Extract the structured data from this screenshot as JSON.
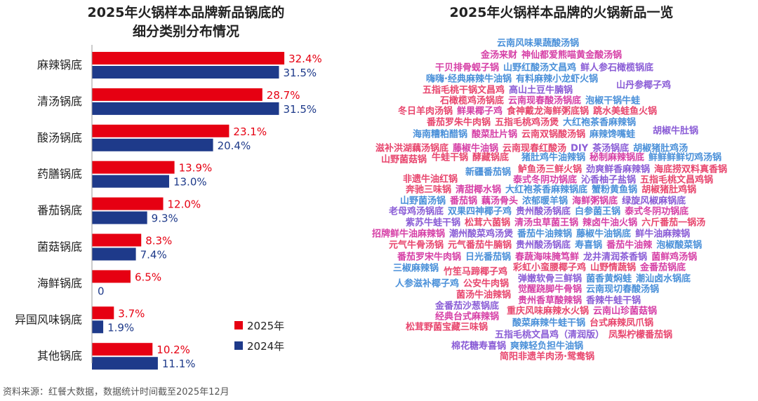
{
  "left_title": [
    "2025年火锅样本品牌新品锅底的",
    "细分类别分布情况"
  ],
  "right_title": "2025年火锅样本品牌的火锅新品一览",
  "source": "资料来源：红餐大数据，数据统计时间截至2025年12月",
  "colors": {
    "red": "#e60012",
    "navy": "#1e3a8a",
    "blue": "#4a90d9",
    "magenta": "#d63fa6",
    "purple": "#8a5cd6",
    "pink": "#e8466e"
  },
  "chart_data": {
    "type": "bar",
    "orientation": "horizontal",
    "categories": [
      "麻辣锅底",
      "清汤锅底",
      "酸汤锅底",
      "药膳锅底",
      "番茄锅底",
      "菌菇锅底",
      "海鲜锅底",
      "异国风味锅底",
      "其他锅底"
    ],
    "series": [
      {
        "name": "2025年",
        "color": "#e60012",
        "values": [
          32.4,
          28.7,
          23.1,
          13.9,
          12.0,
          8.3,
          6.5,
          3.7,
          10.2
        ],
        "labels": [
          "32.4%",
          "28.7%",
          "23.1%",
          "13.9%",
          "12.0%",
          "8.3%",
          "6.5%",
          "3.7%",
          "10.2%"
        ]
      },
      {
        "name": "2024年",
        "color": "#1e3a8a",
        "values": [
          31.5,
          31.5,
          20.4,
          13.0,
          9.3,
          7.4,
          0,
          1.9,
          11.1
        ],
        "labels": [
          "31.5%",
          "31.5%",
          "20.4%",
          "13.0%",
          "9.3%",
          "7.4%",
          "0",
          "1.9%",
          "11.1%"
        ]
      }
    ],
    "legend": "bottom-right",
    "grid": false
  },
  "wordcloud": [
    {
      "t": "云南风味果蔬酸汤锅",
      "c": "blue"
    },
    {
      "t": "金汤来财",
      "c": "magenta"
    },
    {
      "t": "神仙都爱熊喵黄金酸汤锅",
      "c": "magenta"
    },
    {
      "t": "干贝排骨蚬子锅",
      "c": "magenta"
    },
    {
      "t": "山野红酸汤文昌鸡",
      "c": "blue"
    },
    {
      "t": "鲜人参石橄榄锅底",
      "c": "purple"
    },
    {
      "t": "嗨嗨·经典麻辣牛油锅",
      "c": "blue"
    },
    {
      "t": "有料麻辣小龙虾火锅",
      "c": "blue"
    },
    {
      "t": "五指毛桃干锅文昌鸡",
      "c": "pink"
    },
    {
      "t": "高山土豆牛腩锅",
      "c": "purple"
    },
    {
      "t": "山丹参椰子鸡",
      "c": "purple"
    },
    {
      "t": "石橄榄鸡汤锅底",
      "c": "pink"
    },
    {
      "t": "云南现春酸汤锅底",
      "c": "magenta"
    },
    {
      "t": "泡椒干锅牛蛙",
      "c": "blue"
    },
    {
      "t": "冬日羊肉汤锅",
      "c": "pink"
    },
    {
      "t": "鲜果椰子鸡",
      "c": "magenta"
    },
    {
      "t": "食神戴龙海鲜粥底锅",
      "c": "pink"
    },
    {
      "t": "跳水美蛙鱼火锅",
      "c": "pink"
    },
    {
      "t": "番茄罗朱牛肉锅",
      "c": "pink"
    },
    {
      "t": "五指毛桃鸡汤煲",
      "c": "pink"
    },
    {
      "t": "大红袍茶香麻辣锅",
      "c": "blue"
    },
    {
      "t": "海南糟粕醋锅",
      "c": "blue"
    },
    {
      "t": "酸菜肚片锅",
      "c": "magenta"
    },
    {
      "t": "云南双锅酸汤锅",
      "c": "pink"
    },
    {
      "t": "麻辣馋嘴蛙",
      "c": "blue"
    },
    {
      "t": "胡椒牛肚锅",
      "c": "purple"
    },
    {
      "t": "滋补洪湖藕汤锅底",
      "c": "pink"
    },
    {
      "t": "藤椒牛油锅",
      "c": "magenta"
    },
    {
      "t": "云南现春红酸汤",
      "c": "pink"
    },
    {
      "t": "DIY",
      "c": "purple"
    },
    {
      "t": "茶汤锅底",
      "c": "purple"
    },
    {
      "t": "胡椒猪肚鸡汤",
      "c": "blue"
    },
    {
      "t": "山野菌菇锅",
      "c": "pink"
    },
    {
      "t": "牛蛙干锅",
      "c": "pink"
    },
    {
      "t": "酵藏锅底",
      "c": "pink"
    },
    {
      "t": "猪肚鸡牛油辣锅",
      "c": "blue"
    },
    {
      "t": "秘制麻辣锅底",
      "c": "magenta"
    },
    {
      "t": "鲜鲜鲜鲜切鸡汤锅",
      "c": "blue"
    },
    {
      "t": "新疆番茄锅",
      "c": "blue"
    },
    {
      "t": "鲈鱼汤三鲜火锅",
      "c": "pink"
    },
    {
      "t": "劲爽鲜香麻辣锅",
      "c": "purple"
    },
    {
      "t": "海底捞双料真香锅",
      "c": "pink"
    },
    {
      "t": "非遗牛油红锅",
      "c": "pink"
    },
    {
      "t": "泰式冬阴功锅底",
      "c": "magenta"
    },
    {
      "t": "沁香柚子盐锅",
      "c": "purple"
    },
    {
      "t": "五指毛桃文昌鸡锅",
      "c": "pink"
    },
    {
      "t": "奔驰三味锅",
      "c": "pink"
    },
    {
      "t": "清甜椰水锅",
      "c": "magenta"
    },
    {
      "t": "大红袍茶香麻辣锅底",
      "c": "blue"
    },
    {
      "t": "蟹粉黄鱼锅",
      "c": "blue"
    },
    {
      "t": "胡椒猪肚鸡锅",
      "c": "pink"
    },
    {
      "t": "山野菌汤锅",
      "c": "blue"
    },
    {
      "t": "番茄锅",
      "c": "magenta"
    },
    {
      "t": "藕汤骨头",
      "c": "magenta"
    },
    {
      "t": "浓郁暖羊锅",
      "c": "blue"
    },
    {
      "t": "海鲜粥锅底",
      "c": "magenta"
    },
    {
      "t": "绿旋风椒麻锅底",
      "c": "purple"
    },
    {
      "t": "老母鸡汤锅底",
      "c": "purple"
    },
    {
      "t": "双果四神椰子鸡",
      "c": "blue"
    },
    {
      "t": "贵州酸汤锅底",
      "c": "purple"
    },
    {
      "t": "白参菌王锅",
      "c": "blue"
    },
    {
      "t": "泰式冬阴功锅底",
      "c": "magenta"
    },
    {
      "t": "紫苏牛蛙干锅",
      "c": "purple"
    },
    {
      "t": "松茸六菌锅",
      "c": "pink"
    },
    {
      "t": "清汤虫草菌王锅",
      "c": "magenta"
    },
    {
      "t": "辣卤牛油火锅",
      "c": "magenta"
    },
    {
      "t": "六斤番茄一锅汤",
      "c": "pink"
    },
    {
      "t": "招牌鲜牛油麻辣锅",
      "c": "magenta"
    },
    {
      "t": "潮州酸菜鸡汤煲",
      "c": "purple"
    },
    {
      "t": "番茄牛油辣锅",
      "c": "blue"
    },
    {
      "t": "藤椒牛油锅底",
      "c": "blue"
    },
    {
      "t": "鲜牛油麻辣锅",
      "c": "purple"
    },
    {
      "t": "元气牛骨汤锅",
      "c": "pink"
    },
    {
      "t": "元气番茄牛腩锅",
      "c": "pink"
    },
    {
      "t": "贵州酸汤锅底",
      "c": "purple"
    },
    {
      "t": "寿喜锅",
      "c": "blue"
    },
    {
      "t": "番茄牛油辣",
      "c": "magenta"
    },
    {
      "t": "泡椒酸菜锅",
      "c": "blue"
    },
    {
      "t": "番茄罗宋牛肉锅",
      "c": "magenta"
    },
    {
      "t": "日光番茄锅",
      "c": "blue"
    },
    {
      "t": "春蔬海味腌笃鲜",
      "c": "magenta"
    },
    {
      "t": "龙井清润茶香锅",
      "c": "purple"
    },
    {
      "t": "菌鲜鸡汤锅",
      "c": "magenta"
    },
    {
      "t": "三椒麻辣锅",
      "c": "blue"
    },
    {
      "t": "竹笙马蹄椰子鸡",
      "c": "pink"
    },
    {
      "t": "彩虹小蛮腰椰子鸡",
      "c": "pink"
    },
    {
      "t": "山野情蔬锅",
      "c": "pink"
    },
    {
      "t": "金番茄锅底",
      "c": "magenta"
    },
    {
      "t": "弹嫩软骨三鲜锅",
      "c": "purple"
    },
    {
      "t": "菌香黄焖蛙",
      "c": "blue"
    },
    {
      "t": "潮汕卤水锅底",
      "c": "blue"
    },
    {
      "t": "人参滋补椰子鸡",
      "c": "blue"
    },
    {
      "t": "公安牛肉锅",
      "c": "pink"
    },
    {
      "t": "觉醒跷脚牛骨锅",
      "c": "magenta"
    },
    {
      "t": "云南现切春酸汤锅",
      "c": "blue"
    },
    {
      "t": "菌汤牛油辣锅",
      "c": "pink"
    },
    {
      "t": "贵州香草酸辣锅",
      "c": "magenta"
    },
    {
      "t": "香辣牛蛙干锅",
      "c": "purple"
    },
    {
      "t": "金番茄沙葱锅底",
      "c": "purple"
    },
    {
      "t": "重庆风味麻辣水火锅",
      "c": "pink"
    },
    {
      "t": "云南山珍菌菇锅",
      "c": "magenta"
    },
    {
      "t": "经典台式麻辣锅",
      "c": "magenta"
    },
    {
      "t": "酸菜麻辣牛蛙干锅",
      "c": "blue"
    },
    {
      "t": "台式麻辣凤爪锅",
      "c": "pink"
    },
    {
      "t": "松茸野菌宝藏三味锅",
      "c": "pink"
    },
    {
      "t": "五指毛桃文昌鸡（清润版）",
      "c": "purple"
    },
    {
      "t": "凤梨柠檬番茄锅",
      "c": "pink"
    },
    {
      "t": "棉花糖寿喜锅",
      "c": "purple"
    },
    {
      "t": "爽辣轻负担牛油锅",
      "c": "blue"
    },
    {
      "t": "简阳非遗羊肉汤·鸳鸯锅",
      "c": "pink"
    }
  ]
}
